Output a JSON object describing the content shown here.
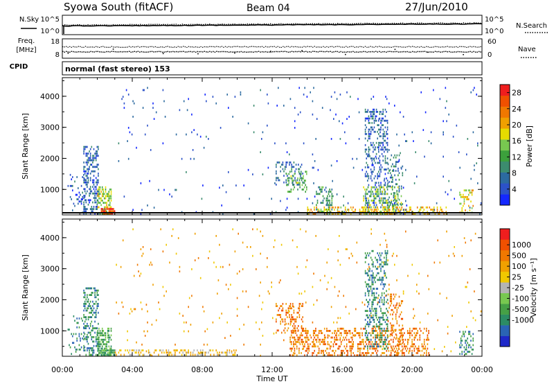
{
  "header": {
    "station": "Syowa South (fitACF)",
    "beam": "Beam 04",
    "date": "27/Jun/2010",
    "program": "normal (fast stereo) 153"
  },
  "left_labels": {
    "nsky": "N.Sky",
    "freq": "Freq.",
    "freq_unit": "[MHz]",
    "cpid": "CPID"
  },
  "right_labels": {
    "nsearch": "N.Search",
    "nave": "Nave"
  },
  "noise_panel": {
    "left_ticks": [
      "10^5",
      "10^0"
    ],
    "right_ticks": [
      "10^5",
      "10^0"
    ]
  },
  "freq_panel": {
    "left_ticks": [
      "18",
      "8"
    ],
    "right_ticks": [
      "60",
      "0"
    ]
  },
  "chart_data": [
    {
      "type": "heatmap",
      "quantity": "power",
      "ylabel": "Slant Range [km]",
      "xlabel": "Time UT",
      "x_ticks": [
        "00:00",
        "04:00",
        "08:00",
        "12:00",
        "16:00",
        "20:00",
        "00:00"
      ],
      "y_ticks": [
        "1000",
        "2000",
        "3000",
        "4000"
      ],
      "ylim": [
        180,
        4600
      ],
      "xlim_hours": [
        0,
        24
      ],
      "colorbar": {
        "label": "Power [dB]",
        "ticks": [
          "4",
          "8",
          "12",
          "16",
          "20",
          "24",
          "28"
        ],
        "range": [
          0,
          30
        ],
        "colors": [
          "#1428ff",
          "#2c52c8",
          "#2c6aa0",
          "#3c8c6e",
          "#3ca03c",
          "#78c850",
          "#e6dc00",
          "#f0a000",
          "#f07800",
          "#f05000",
          "#f01e1e"
        ]
      },
      "echo_clusters": [
        {
          "t0": 1.2,
          "t1": 2.1,
          "r0": 200,
          "r1": 2400,
          "value": 6,
          "density": 0.45
        },
        {
          "t0": 2.0,
          "t1": 2.8,
          "r0": 200,
          "r1": 1100,
          "value": 16,
          "density": 0.55
        },
        {
          "t0": 2.2,
          "t1": 3.0,
          "r0": 180,
          "r1": 400,
          "value": 26,
          "density": 0.8
        },
        {
          "t0": 0.3,
          "t1": 1.3,
          "r0": 180,
          "r1": 1500,
          "value": 5,
          "density": 0.15
        },
        {
          "t0": 12.2,
          "t1": 13.8,
          "r0": 1100,
          "r1": 1900,
          "value": 7,
          "density": 0.3
        },
        {
          "t0": 12.8,
          "t1": 14.0,
          "r0": 900,
          "r1": 1600,
          "value": 13,
          "density": 0.3
        },
        {
          "t0": 14.5,
          "t1": 15.5,
          "r0": 200,
          "r1": 1100,
          "value": 10,
          "density": 0.3
        },
        {
          "t0": 17.3,
          "t1": 18.6,
          "r0": 400,
          "r1": 3600,
          "value": 6,
          "density": 0.35
        },
        {
          "t0": 17.2,
          "t1": 19.4,
          "r0": 200,
          "r1": 1100,
          "value": 15,
          "density": 0.35
        },
        {
          "t0": 18.6,
          "t1": 19.5,
          "r0": 200,
          "r1": 2200,
          "value": 8,
          "density": 0.25
        },
        {
          "t0": 22.7,
          "t1": 23.5,
          "r0": 200,
          "r1": 1000,
          "value": 18,
          "density": 0.3
        },
        {
          "t0": 14.0,
          "t1": 22.0,
          "r0": 180,
          "r1": 450,
          "value": 20,
          "density": 0.35
        },
        {
          "t0": 3.0,
          "t1": 24.0,
          "r0": 180,
          "r1": 4300,
          "value": 5,
          "density": 0.015
        }
      ]
    },
    {
      "type": "heatmap",
      "quantity": "velocity",
      "ylabel": "Slant Range [km]",
      "xlabel": "Time UT",
      "x_ticks": [
        "00:00",
        "04:00",
        "08:00",
        "12:00",
        "16:00",
        "20:00",
        "00:00"
      ],
      "y_ticks": [
        "1000",
        "2000",
        "3000",
        "4000"
      ],
      "ylim": [
        180,
        4600
      ],
      "xlim_hours": [
        0,
        24
      ],
      "colorbar": {
        "label": "Velocity [m s⁻¹]",
        "ticks": [
          "1000",
          "500",
          "100",
          "25",
          "-25",
          "-100",
          "-500",
          "-1000"
        ],
        "colors": [
          "#1e28c8",
          "#2a64b4",
          "#2c8c64",
          "#46a046",
          "#78c850",
          "#b4b4b4",
          "#f0c800",
          "#f0a000",
          "#f07800",
          "#f05000",
          "#f01e1e"
        ]
      },
      "echo_clusters": [
        {
          "t0": 1.2,
          "t1": 2.1,
          "r0": 200,
          "r1": 2400,
          "value": 2,
          "density": 0.45
        },
        {
          "t0": 2.0,
          "t1": 2.8,
          "r0": 200,
          "r1": 1100,
          "value": 3,
          "density": 0.55
        },
        {
          "t0": 2.2,
          "t1": 3.0,
          "r0": 180,
          "r1": 400,
          "value": 3,
          "density": 0.8
        },
        {
          "t0": 0.3,
          "t1": 1.3,
          "r0": 180,
          "r1": 1500,
          "value": 2,
          "density": 0.15
        },
        {
          "t0": 3.0,
          "t1": 10.0,
          "r0": 180,
          "r1": 400,
          "value": 6,
          "density": 0.35
        },
        {
          "t0": 12.2,
          "t1": 13.8,
          "r0": 900,
          "r1": 1900,
          "value": 8,
          "density": 0.3
        },
        {
          "t0": 13.0,
          "t1": 21.0,
          "r0": 180,
          "r1": 1100,
          "value": 8,
          "density": 0.35
        },
        {
          "t0": 17.3,
          "t1": 18.6,
          "r0": 400,
          "r1": 3600,
          "value": 2,
          "density": 0.35
        },
        {
          "t0": 18.6,
          "t1": 19.5,
          "r0": 200,
          "r1": 2200,
          "value": 8,
          "density": 0.25
        },
        {
          "t0": 22.7,
          "t1": 23.5,
          "r0": 200,
          "r1": 1000,
          "value": 2,
          "density": 0.3
        },
        {
          "t0": 3.0,
          "t1": 24.0,
          "r0": 180,
          "r1": 4300,
          "value": 7,
          "density": 0.015
        }
      ]
    }
  ]
}
